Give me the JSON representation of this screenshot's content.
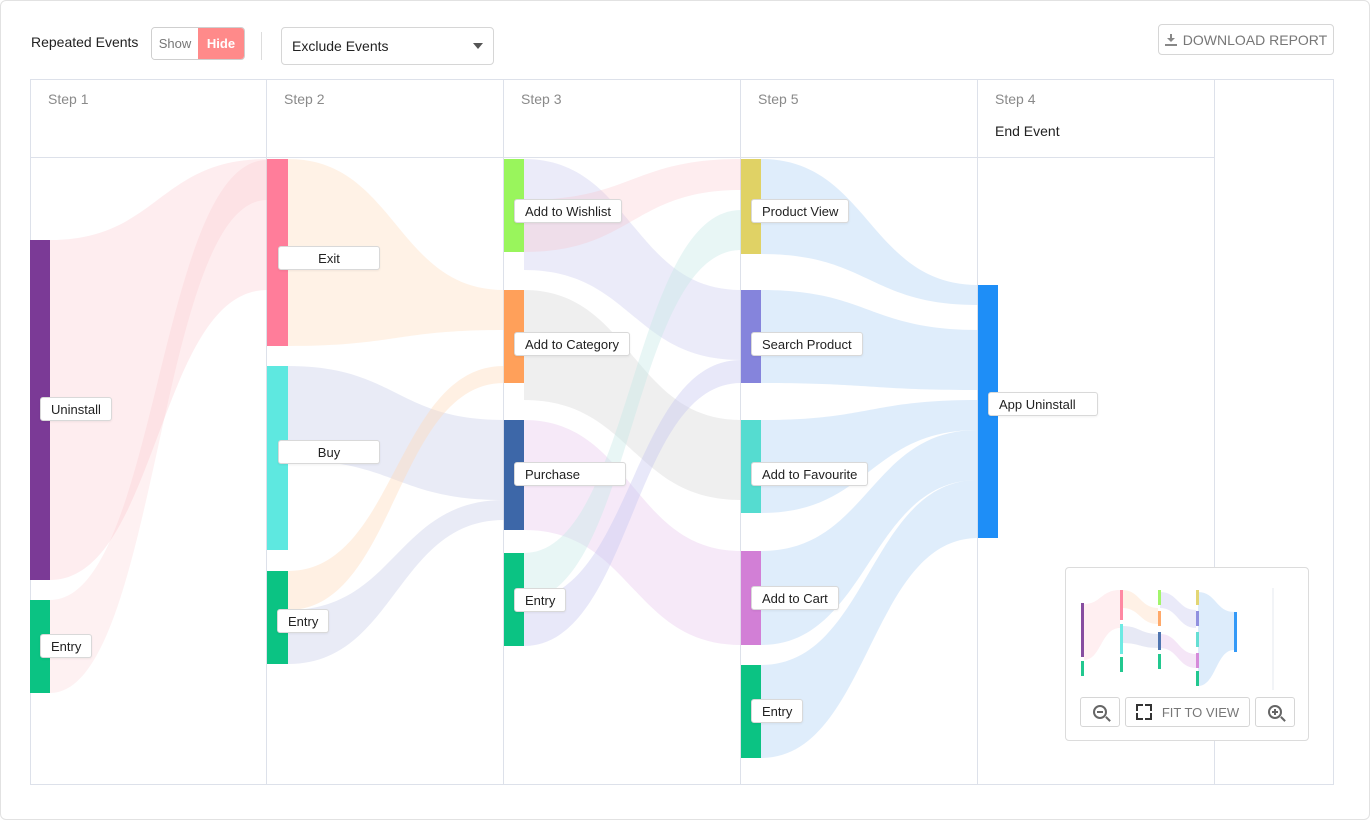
{
  "toolbar": {
    "repeated_label": "Repeated Events",
    "show_label": "Show",
    "hide_label": "Hide",
    "exclude_label": "Exclude Events",
    "download_label": "DOWNLOAD REPORT"
  },
  "columns": [
    {
      "step": "Step 1",
      "sub": ""
    },
    {
      "step": "Step 2",
      "sub": ""
    },
    {
      "step": "Step 3",
      "sub": ""
    },
    {
      "step": "Step 5",
      "sub": ""
    },
    {
      "step": "Step 4",
      "sub": "End Event"
    }
  ],
  "nodes": {
    "uninstall": {
      "label": "Uninstall",
      "color": "#7b3a96"
    },
    "entry1": {
      "label": "Entry",
      "color": "#0bc383"
    },
    "exit": {
      "label": "Exit",
      "color": "#ff7d9a"
    },
    "buy": {
      "label": "Buy",
      "color": "#5ee8e0"
    },
    "entry2": {
      "label": "Entry",
      "color": "#0bc383"
    },
    "wishlist": {
      "label": "Add to Wishlist",
      "color": "#99f55c"
    },
    "category": {
      "label": "Add to Category",
      "color": "#ffa05a"
    },
    "purchase": {
      "label": "Purchase",
      "color": "#3d67a8"
    },
    "entry3": {
      "label": "Entry",
      "color": "#0bc383"
    },
    "productview": {
      "label": "Product View",
      "color": "#e0d265"
    },
    "searchproduct": {
      "label": "Search Product",
      "color": "#8584dc"
    },
    "favourite": {
      "label": "Add to Favourite",
      "color": "#55dcd0"
    },
    "cart": {
      "label": "Add to Cart",
      "color": "#d27fd6"
    },
    "entry5": {
      "label": "Entry",
      "color": "#0bc383"
    },
    "appuninstall": {
      "label": "App Uninstall",
      "color": "#1e8ef7"
    }
  },
  "minimap": {
    "fit_label": "FIT TO VIEW",
    "zoom_out_icon": "zoom-out-icon",
    "zoom_in_icon": "zoom-in-icon"
  }
}
